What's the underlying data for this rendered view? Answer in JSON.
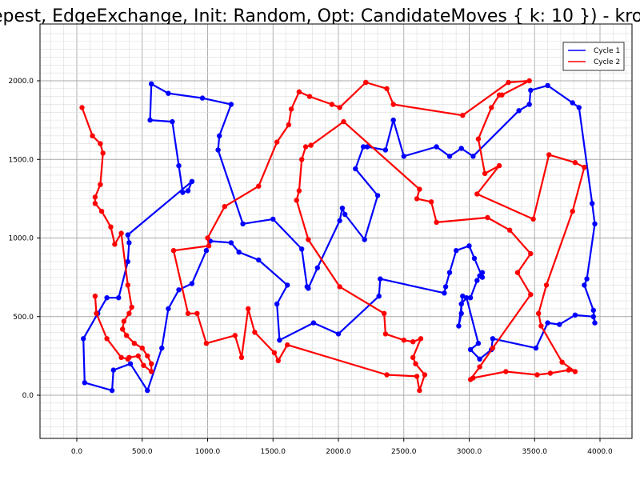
{
  "title": "epest, EdgeExchange, Init: Random, Opt: CandidateMoves { k: 10 }) - krob",
  "chart_data": {
    "type": "line",
    "xlim": [
      -300,
      4300
    ],
    "ylim": [
      -270,
      2300
    ],
    "x_ticks": [
      0,
      500,
      1000,
      1500,
      2000,
      2500,
      3000,
      3500,
      4000
    ],
    "y_ticks": [
      0,
      500,
      1000,
      1500,
      2000
    ],
    "x_tick_labels": [
      "0.0",
      "500.0",
      "1000.0",
      "1500.0",
      "2000.0",
      "2500.0",
      "3000.0",
      "3500.0",
      "4000.0"
    ],
    "y_tick_labels": [
      "0.0",
      "500.0",
      "1000.0",
      "1500.0",
      "2000.0"
    ],
    "grid": true,
    "legend_position": "top-right",
    "series": [
      {
        "name": "Cycle 1",
        "color": "#0000ff",
        "points": [
          [
            570,
            1980
          ],
          [
            700,
            1920
          ],
          [
            960,
            1890
          ],
          [
            1180,
            1850
          ],
          [
            1090,
            1650
          ],
          [
            1080,
            1560
          ],
          [
            1270,
            1090
          ],
          [
            1500,
            1120
          ],
          [
            1720,
            930
          ],
          [
            1760,
            690
          ],
          [
            1770,
            680
          ],
          [
            1840,
            810
          ],
          [
            2010,
            1110
          ],
          [
            2030,
            1190
          ],
          [
            2050,
            1150
          ],
          [
            2200,
            990
          ],
          [
            2300,
            1270
          ],
          [
            2130,
            1440
          ],
          [
            2190,
            1580
          ],
          [
            2220,
            1580
          ],
          [
            2360,
            1560
          ],
          [
            2420,
            1750
          ],
          [
            2500,
            1520
          ],
          [
            2750,
            1580
          ],
          [
            2850,
            1520
          ],
          [
            2940,
            1570
          ],
          [
            3030,
            1520
          ],
          [
            3380,
            1810
          ],
          [
            3460,
            1850
          ],
          [
            3470,
            1940
          ],
          [
            3600,
            1970
          ],
          [
            3790,
            1860
          ],
          [
            3840,
            1830
          ],
          [
            3940,
            1220
          ],
          [
            3960,
            1090
          ],
          [
            3900,
            740
          ],
          [
            3880,
            700
          ],
          [
            3950,
            540
          ],
          [
            3960,
            460
          ],
          [
            3950,
            500
          ],
          [
            3810,
            510
          ],
          [
            3690,
            450
          ],
          [
            3600,
            460
          ],
          [
            3510,
            300
          ],
          [
            3180,
            360
          ],
          [
            3170,
            290
          ],
          [
            3080,
            230
          ],
          [
            3010,
            290
          ],
          [
            3070,
            330
          ],
          [
            2980,
            620
          ],
          [
            2940,
            580
          ],
          [
            2940,
            520
          ],
          [
            2920,
            440
          ],
          [
            2950,
            630
          ],
          [
            3010,
            620
          ],
          [
            3060,
            730
          ],
          [
            3080,
            760
          ],
          [
            3100,
            780
          ],
          [
            3100,
            750
          ],
          [
            3040,
            870
          ],
          [
            3000,
            950
          ],
          [
            2900,
            920
          ],
          [
            2850,
            780
          ],
          [
            2820,
            690
          ],
          [
            2810,
            650
          ],
          [
            2320,
            740
          ],
          [
            2310,
            630
          ],
          [
            2000,
            390
          ],
          [
            1810,
            460
          ],
          [
            1550,
            350
          ],
          [
            1530,
            580
          ],
          [
            1610,
            700
          ],
          [
            1390,
            860
          ],
          [
            1240,
            910
          ],
          [
            1180,
            970
          ],
          [
            1020,
            980
          ],
          [
            990,
            920
          ],
          [
            880,
            710
          ],
          [
            780,
            670
          ],
          [
            700,
            550
          ],
          [
            650,
            300
          ],
          [
            540,
            30
          ],
          [
            410,
            200
          ],
          [
            280,
            160
          ],
          [
            270,
            30
          ],
          [
            60,
            80
          ],
          [
            50,
            360
          ],
          [
            160,
            520
          ],
          [
            230,
            620
          ],
          [
            320,
            620
          ],
          [
            390,
            850
          ],
          [
            400,
            970
          ],
          [
            390,
            1020
          ],
          [
            880,
            1360
          ],
          [
            850,
            1300
          ],
          [
            810,
            1290
          ],
          [
            780,
            1460
          ],
          [
            730,
            1740
          ],
          [
            560,
            1750
          ],
          [
            570,
            1980
          ]
        ]
      },
      {
        "name": "Cycle 2",
        "color": "#ff0000",
        "points": [
          [
            2210,
            1990
          ],
          [
            2370,
            1950
          ],
          [
            2420,
            1850
          ],
          [
            2950,
            1780
          ],
          [
            3300,
            1990
          ],
          [
            3460,
            2000
          ],
          [
            3250,
            1910
          ],
          [
            3230,
            1910
          ],
          [
            3170,
            1830
          ],
          [
            3070,
            1630
          ],
          [
            3120,
            1410
          ],
          [
            3230,
            1460
          ],
          [
            3060,
            1280
          ],
          [
            3490,
            1120
          ],
          [
            3610,
            1530
          ],
          [
            3810,
            1480
          ],
          [
            3880,
            1450
          ],
          [
            3790,
            1170
          ],
          [
            3590,
            700
          ],
          [
            3530,
            520
          ],
          [
            3550,
            440
          ],
          [
            3710,
            210
          ],
          [
            3810,
            150
          ],
          [
            3760,
            160
          ],
          [
            3620,
            140
          ],
          [
            3520,
            130
          ],
          [
            3280,
            150
          ],
          [
            3030,
            110
          ],
          [
            3010,
            100
          ],
          [
            3080,
            180
          ],
          [
            3180,
            300
          ],
          [
            3470,
            640
          ],
          [
            3370,
            780
          ],
          [
            3470,
            900
          ],
          [
            3310,
            1050
          ],
          [
            3140,
            1130
          ],
          [
            2750,
            1100
          ],
          [
            2710,
            1230
          ],
          [
            2600,
            1250
          ],
          [
            2620,
            1310
          ],
          [
            2040,
            1740
          ],
          [
            1790,
            1590
          ],
          [
            1750,
            1580
          ],
          [
            1720,
            1500
          ],
          [
            1700,
            1300
          ],
          [
            1680,
            1240
          ],
          [
            1770,
            990
          ],
          [
            2010,
            690
          ],
          [
            2350,
            520
          ],
          [
            2360,
            390
          ],
          [
            2500,
            350
          ],
          [
            2570,
            340
          ],
          [
            2630,
            360
          ],
          [
            2570,
            240
          ],
          [
            2590,
            200
          ],
          [
            2660,
            130
          ],
          [
            2620,
            30
          ],
          [
            2600,
            120
          ],
          [
            2370,
            130
          ],
          [
            1610,
            320
          ],
          [
            1540,
            220
          ],
          [
            1510,
            270
          ],
          [
            1360,
            400
          ],
          [
            1310,
            550
          ],
          [
            1260,
            240
          ],
          [
            1210,
            380
          ],
          [
            990,
            330
          ],
          [
            920,
            520
          ],
          [
            850,
            520
          ],
          [
            740,
            920
          ],
          [
            1010,
            950
          ],
          [
            1000,
            1000
          ],
          [
            1130,
            1200
          ],
          [
            1390,
            1330
          ],
          [
            1530,
            1610
          ],
          [
            1620,
            1720
          ],
          [
            1640,
            1820
          ],
          [
            1700,
            1930
          ],
          [
            1780,
            1900
          ],
          [
            1950,
            1850
          ],
          [
            2010,
            1830
          ],
          [
            2210,
            1990
          ]
        ]
      },
      {
        "name": "",
        "color": "#ff0000",
        "points": [
          [
            40,
            1830
          ],
          [
            120,
            1650
          ],
          [
            180,
            1600
          ],
          [
            200,
            1540
          ],
          [
            180,
            1340
          ],
          [
            140,
            1260
          ],
          [
            140,
            1220
          ],
          [
            190,
            1170
          ],
          [
            260,
            1070
          ],
          [
            290,
            960
          ],
          [
            340,
            1030
          ],
          [
            390,
            700
          ],
          [
            420,
            560
          ],
          [
            400,
            520
          ],
          [
            360,
            470
          ],
          [
            350,
            420
          ],
          [
            380,
            380
          ],
          [
            440,
            330
          ],
          [
            500,
            300
          ],
          [
            540,
            250
          ],
          [
            570,
            200
          ],
          [
            570,
            150
          ],
          [
            510,
            190
          ],
          [
            470,
            250
          ],
          [
            400,
            240
          ],
          [
            390,
            230
          ],
          [
            340,
            240
          ],
          [
            230,
            360
          ],
          [
            150,
            520
          ],
          [
            140,
            630
          ]
        ]
      }
    ]
  },
  "legend": {
    "items": [
      {
        "label": "Cycle 1",
        "color": "#0000ff"
      },
      {
        "label": "Cycle 2",
        "color": "#ff0000"
      }
    ]
  }
}
